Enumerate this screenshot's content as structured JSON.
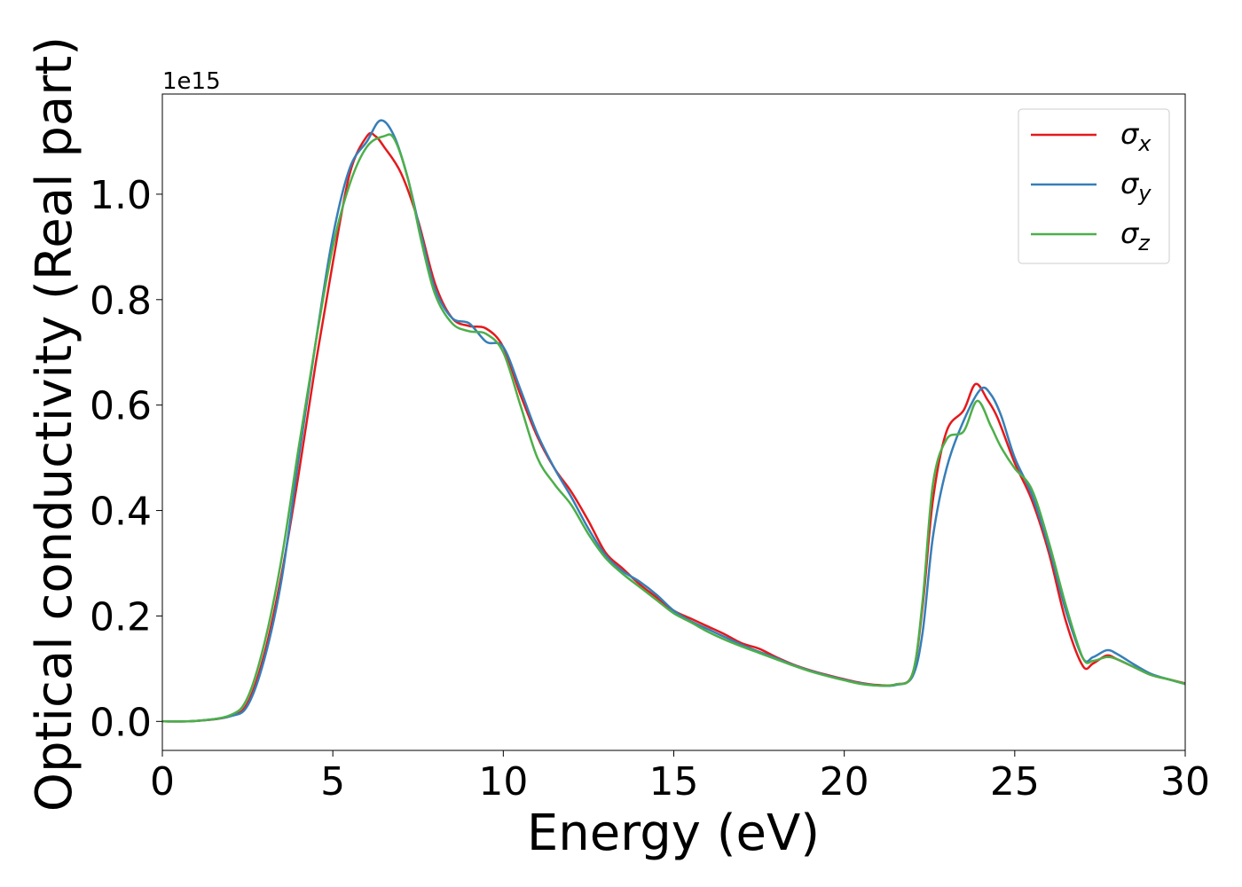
{
  "chart_data": {
    "type": "line",
    "title": "",
    "xlabel": "Energy (eV)",
    "ylabel": "Optical conductivity (Real part)",
    "y_offset_text": "1e15",
    "y_scale": 1000000000000000.0,
    "xlim": [
      0,
      30
    ],
    "ylim": [
      -0.055,
      1.19
    ],
    "x_ticks": [
      0,
      5,
      10,
      15,
      20,
      25,
      30
    ],
    "x_tick_labels": [
      "0",
      "5",
      "10",
      "15",
      "20",
      "25",
      "30"
    ],
    "y_ticks": [
      0.0,
      0.2,
      0.4,
      0.6,
      0.8,
      1.0
    ],
    "y_tick_labels": [
      "0.0",
      "0.2",
      "0.4",
      "0.6",
      "0.8",
      "1.0"
    ],
    "grid": false,
    "legend_position": "top-right",
    "series": [
      {
        "name": "σx",
        "legend_base": "σ",
        "legend_sub": "x",
        "color": "#e41a1c",
        "points": [
          [
            0,
            0
          ],
          [
            1,
            0.001
          ],
          [
            2,
            0.01
          ],
          [
            2.5,
            0.035
          ],
          [
            3,
            0.13
          ],
          [
            3.5,
            0.28
          ],
          [
            4,
            0.47
          ],
          [
            4.5,
            0.68
          ],
          [
            5,
            0.87
          ],
          [
            5.5,
            1.04
          ],
          [
            6,
            1.11
          ],
          [
            6.25,
            1.11
          ],
          [
            6.5,
            1.09
          ],
          [
            7,
            1.04
          ],
          [
            7.5,
            0.95
          ],
          [
            8,
            0.83
          ],
          [
            8.5,
            0.765
          ],
          [
            9,
            0.75
          ],
          [
            9.5,
            0.745
          ],
          [
            10,
            0.71
          ],
          [
            10.5,
            0.62
          ],
          [
            11,
            0.54
          ],
          [
            11.5,
            0.48
          ],
          [
            12,
            0.435
          ],
          [
            12.5,
            0.38
          ],
          [
            13,
            0.32
          ],
          [
            13.5,
            0.29
          ],
          [
            14,
            0.26
          ],
          [
            14.5,
            0.235
          ],
          [
            15,
            0.21
          ],
          [
            15.5,
            0.195
          ],
          [
            16,
            0.18
          ],
          [
            16.5,
            0.165
          ],
          [
            17,
            0.148
          ],
          [
            17.5,
            0.138
          ],
          [
            18,
            0.122
          ],
          [
            18.5,
            0.108
          ],
          [
            19,
            0.097
          ],
          [
            19.5,
            0.088
          ],
          [
            20,
            0.08
          ],
          [
            20.5,
            0.073
          ],
          [
            21,
            0.069
          ],
          [
            21.5,
            0.07
          ],
          [
            22,
            0.09
          ],
          [
            22.3,
            0.22
          ],
          [
            22.6,
            0.42
          ],
          [
            23,
            0.55
          ],
          [
            23.5,
            0.59
          ],
          [
            23.85,
            0.64
          ],
          [
            24.2,
            0.61
          ],
          [
            24.5,
            0.575
          ],
          [
            25,
            0.49
          ],
          [
            25.5,
            0.42
          ],
          [
            26,
            0.32
          ],
          [
            26.5,
            0.19
          ],
          [
            27,
            0.105
          ],
          [
            27.3,
            0.11
          ],
          [
            27.7,
            0.125
          ],
          [
            28,
            0.118
          ],
          [
            28.5,
            0.103
          ],
          [
            29,
            0.088
          ],
          [
            29.5,
            0.08
          ],
          [
            30,
            0.072
          ]
        ]
      },
      {
        "name": "σy",
        "legend_base": "σ",
        "legend_sub": "y",
        "color": "#377eb8",
        "points": [
          [
            0,
            0
          ],
          [
            1,
            0.001
          ],
          [
            2,
            0.01
          ],
          [
            2.5,
            0.03
          ],
          [
            3,
            0.12
          ],
          [
            3.5,
            0.27
          ],
          [
            4,
            0.5
          ],
          [
            4.5,
            0.72
          ],
          [
            5,
            0.92
          ],
          [
            5.5,
            1.05
          ],
          [
            6,
            1.1
          ],
          [
            6.4,
            1.14
          ],
          [
            6.8,
            1.11
          ],
          [
            7.2,
            1.03
          ],
          [
            7.6,
            0.92
          ],
          [
            8,
            0.82
          ],
          [
            8.5,
            0.765
          ],
          [
            9,
            0.755
          ],
          [
            9.5,
            0.72
          ],
          [
            10,
            0.71
          ],
          [
            10.5,
            0.63
          ],
          [
            11,
            0.545
          ],
          [
            11.5,
            0.48
          ],
          [
            12,
            0.425
          ],
          [
            12.5,
            0.365
          ],
          [
            13,
            0.315
          ],
          [
            13.5,
            0.285
          ],
          [
            14,
            0.265
          ],
          [
            14.5,
            0.24
          ],
          [
            15,
            0.21
          ],
          [
            15.5,
            0.19
          ],
          [
            16,
            0.175
          ],
          [
            16.5,
            0.16
          ],
          [
            17,
            0.145
          ],
          [
            17.5,
            0.132
          ],
          [
            18,
            0.12
          ],
          [
            18.5,
            0.107
          ],
          [
            19,
            0.096
          ],
          [
            19.5,
            0.087
          ],
          [
            20,
            0.079
          ],
          [
            20.5,
            0.072
          ],
          [
            21,
            0.068
          ],
          [
            21.5,
            0.069
          ],
          [
            22,
            0.085
          ],
          [
            22.3,
            0.17
          ],
          [
            22.6,
            0.35
          ],
          [
            23,
            0.48
          ],
          [
            23.5,
            0.57
          ],
          [
            24,
            0.63
          ],
          [
            24.3,
            0.62
          ],
          [
            24.6,
            0.58
          ],
          [
            25,
            0.5
          ],
          [
            25.5,
            0.43
          ],
          [
            26,
            0.33
          ],
          [
            26.5,
            0.21
          ],
          [
            27,
            0.12
          ],
          [
            27.3,
            0.122
          ],
          [
            27.7,
            0.135
          ],
          [
            28,
            0.128
          ],
          [
            28.5,
            0.108
          ],
          [
            29,
            0.09
          ],
          [
            29.5,
            0.08
          ],
          [
            30,
            0.071
          ]
        ]
      },
      {
        "name": "σz",
        "legend_base": "σ",
        "legend_sub": "z",
        "color": "#4daf4a",
        "points": [
          [
            0,
            0
          ],
          [
            1,
            0.001
          ],
          [
            2,
            0.012
          ],
          [
            2.5,
            0.045
          ],
          [
            3,
            0.15
          ],
          [
            3.5,
            0.31
          ],
          [
            4,
            0.52
          ],
          [
            4.5,
            0.72
          ],
          [
            5,
            0.9
          ],
          [
            5.5,
            1.02
          ],
          [
            6,
            1.09
          ],
          [
            6.5,
            1.11
          ],
          [
            6.8,
            1.105
          ],
          [
            7.2,
            1.03
          ],
          [
            7.6,
            0.91
          ],
          [
            8,
            0.81
          ],
          [
            8.5,
            0.755
          ],
          [
            9,
            0.74
          ],
          [
            9.5,
            0.735
          ],
          [
            10,
            0.7
          ],
          [
            10.5,
            0.6
          ],
          [
            11,
            0.5
          ],
          [
            11.5,
            0.45
          ],
          [
            12,
            0.41
          ],
          [
            12.5,
            0.355
          ],
          [
            13,
            0.31
          ],
          [
            13.5,
            0.28
          ],
          [
            14,
            0.255
          ],
          [
            14.5,
            0.23
          ],
          [
            15,
            0.205
          ],
          [
            15.5,
            0.188
          ],
          [
            16,
            0.17
          ],
          [
            16.5,
            0.155
          ],
          [
            17,
            0.142
          ],
          [
            17.5,
            0.13
          ],
          [
            18,
            0.118
          ],
          [
            18.5,
            0.106
          ],
          [
            19,
            0.095
          ],
          [
            19.5,
            0.086
          ],
          [
            20,
            0.078
          ],
          [
            20.5,
            0.071
          ],
          [
            21,
            0.068
          ],
          [
            21.5,
            0.07
          ],
          [
            22,
            0.09
          ],
          [
            22.3,
            0.23
          ],
          [
            22.6,
            0.45
          ],
          [
            23,
            0.535
          ],
          [
            23.5,
            0.55
          ],
          [
            23.9,
            0.608
          ],
          [
            24.3,
            0.56
          ],
          [
            24.6,
            0.52
          ],
          [
            25,
            0.48
          ],
          [
            25.5,
            0.44
          ],
          [
            26,
            0.34
          ],
          [
            26.5,
            0.22
          ],
          [
            27,
            0.12
          ],
          [
            27.3,
            0.115
          ],
          [
            27.7,
            0.122
          ],
          [
            28,
            0.118
          ],
          [
            28.5,
            0.103
          ],
          [
            29,
            0.088
          ],
          [
            29.5,
            0.08
          ],
          [
            30,
            0.071
          ]
        ]
      }
    ]
  }
}
